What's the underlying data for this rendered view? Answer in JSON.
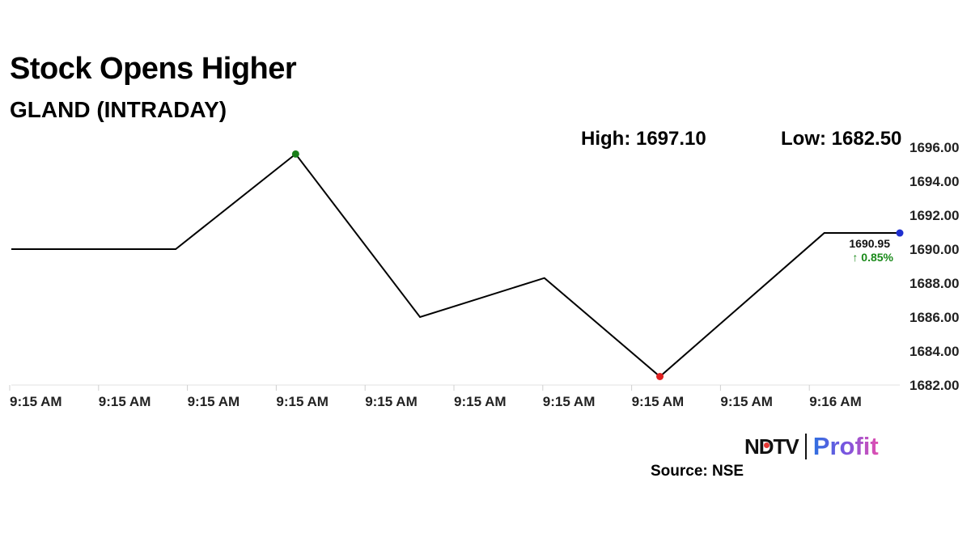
{
  "header": {
    "title": "Stock Opens Higher",
    "subtitle": "GLAND (INTRADAY)"
  },
  "stats": {
    "high_label": "High: 1697.10",
    "low_label": "Low: 1682.50"
  },
  "footer": {
    "logo_ndtv": "NDTV",
    "logo_profit": "Profit",
    "source": "Source: NSE"
  },
  "colors": {
    "line": "#000000",
    "high_marker": "#1a7f1a",
    "low_marker": "#e02020",
    "last_marker": "#1f2fd0",
    "change_up": "#1a8a1a",
    "grid": "#e0e0e0"
  },
  "chart_data": {
    "type": "line",
    "x_tick_labels": [
      "9:15 AM",
      "9:15 AM",
      "9:15 AM",
      "9:15 AM",
      "9:15 AM",
      "9:15 AM",
      "9:15 AM",
      "9:15 AM",
      "9:15 AM",
      "9:16 AM"
    ],
    "y_tick_labels": [
      "1682.00",
      "1684.00",
      "1686.00",
      "1688.00",
      "1690.00",
      "1692.00",
      "1694.00",
      "1696.00"
    ],
    "ylim": [
      1682,
      1696
    ],
    "y_axis_position": "right",
    "grid": "x-ticks only",
    "series": [
      {
        "x": [
          0,
          1.85,
          3.2,
          4.6,
          6.0,
          7.3,
          9.15,
          10.0
        ],
        "values": [
          1690.0,
          1690.0,
          1695.6,
          1686.0,
          1688.3,
          1682.5,
          1690.95,
          1690.95
        ]
      }
    ],
    "markers": [
      {
        "type": "high",
        "index": 2
      },
      {
        "type": "low",
        "index": 5
      },
      {
        "type": "last",
        "index": 7
      }
    ],
    "last_value_label": "1690.95",
    "change_label": "↑ 0.85%"
  }
}
